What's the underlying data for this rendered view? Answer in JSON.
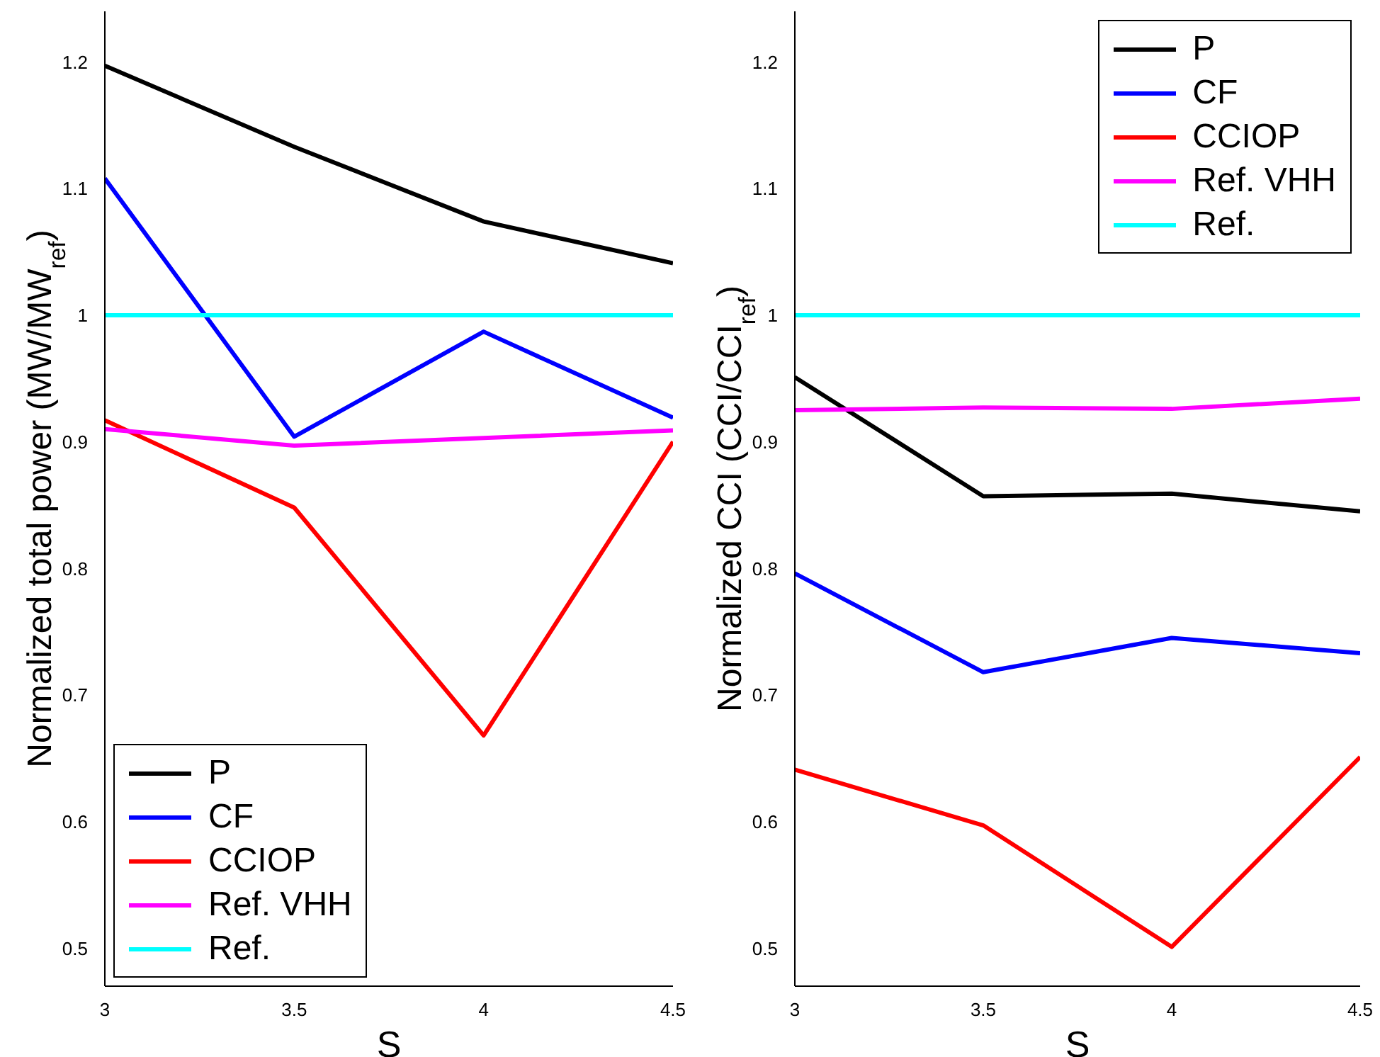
{
  "chart_data": [
    {
      "type": "line",
      "xlabel": "S",
      "ylabel": "Normalized total power (MW/MW$_{ref}$)",
      "x": [
        3,
        3.5,
        4,
        4.5
      ],
      "xlim": [
        3,
        4.5
      ],
      "xticks": [
        3,
        3.5,
        4,
        4.5
      ],
      "ylim": [
        0.47,
        1.24
      ],
      "yticks": [
        0.5,
        0.6,
        0.7,
        0.8,
        0.9,
        1,
        1.1,
        1.2
      ],
      "legend": "bottom left",
      "grid": false,
      "marker": "none",
      "series": [
        {
          "name": "P",
          "color": "#000000",
          "values": [
            1.197,
            1.133,
            1.074,
            1.041
          ]
        },
        {
          "name": "CF",
          "color": "#0000ff",
          "values": [
            1.108,
            0.904,
            0.987,
            0.919
          ]
        },
        {
          "name": "CCIOP",
          "color": "#ff0000",
          "values": [
            0.917,
            0.848,
            0.668,
            0.9
          ]
        },
        {
          "name": "Ref. VHH",
          "color": "#ff00ff",
          "values": [
            0.91,
            0.897,
            0.903,
            0.909
          ]
        },
        {
          "name": "Ref.",
          "color": "#00ffff",
          "values": [
            1,
            1,
            1,
            1
          ]
        }
      ]
    },
    {
      "type": "line",
      "xlabel": "S",
      "ylabel": "Normalized CCI (CCI/CCI$_{ref}$)",
      "x": [
        3,
        3.5,
        4,
        4.5
      ],
      "xlim": [
        3,
        4.5
      ],
      "xticks": [
        3,
        3.5,
        4,
        4.5
      ],
      "ylim": [
        0.47,
        1.24
      ],
      "yticks": [
        0.5,
        0.6,
        0.7,
        0.8,
        0.9,
        1,
        1.1,
        1.2
      ],
      "legend": "top right",
      "grid": false,
      "marker": "none",
      "series": [
        {
          "name": "P",
          "color": "#000000",
          "values": [
            0.951,
            0.857,
            0.859,
            0.845
          ]
        },
        {
          "name": "CF",
          "color": "#0000ff",
          "values": [
            0.796,
            0.718,
            0.745,
            0.733
          ]
        },
        {
          "name": "CCIOP",
          "color": "#ff0000",
          "values": [
            0.641,
            0.597,
            0.501,
            0.651
          ]
        },
        {
          "name": "Ref. VHH",
          "color": "#ff00ff",
          "values": [
            0.925,
            0.927,
            0.926,
            0.934
          ]
        },
        {
          "name": "Ref.",
          "color": "#00ffff",
          "values": [
            1,
            1,
            1,
            1
          ]
        }
      ]
    }
  ]
}
